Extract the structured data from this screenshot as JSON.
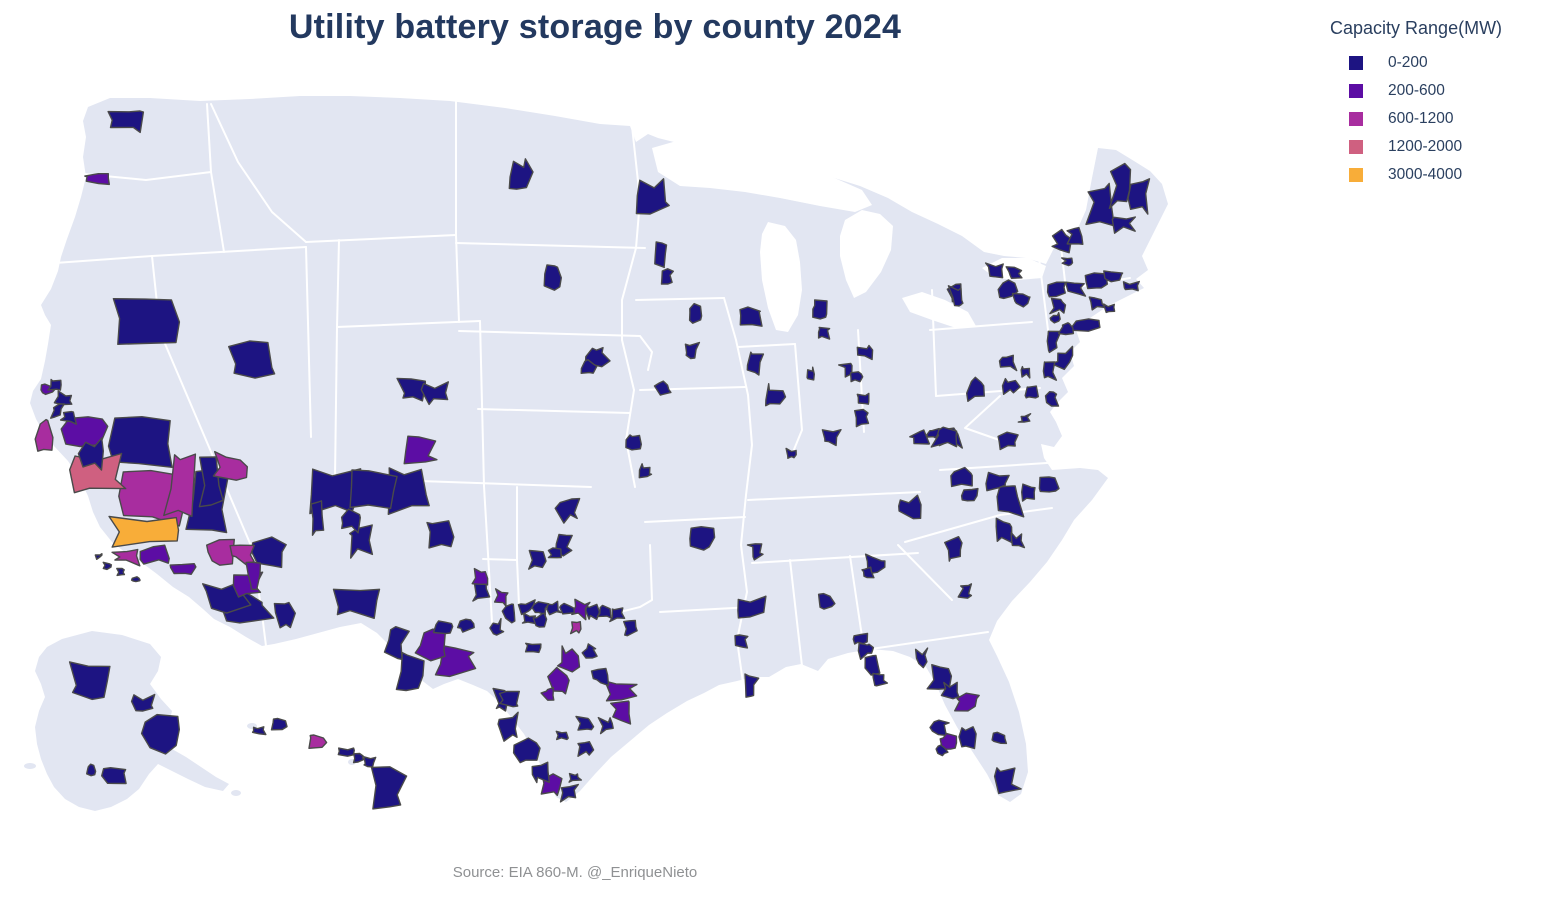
{
  "title": {
    "text": "Utility battery storage by county 2024"
  },
  "legend": {
    "title": "Capacity Range(MW)",
    "items": [
      {
        "label": "0-200",
        "color": "#1d1482"
      },
      {
        "label": "200-600",
        "color": "#5c0da4"
      },
      {
        "label": "600-1200",
        "color": "#a82d9f"
      },
      {
        "label": "1200-2000",
        "color": "#cf6080"
      },
      {
        "label": "3000-4000",
        "color": "#f8ad39"
      }
    ]
  },
  "source": {
    "text": "Source: EIA 860-M. @_EnriqueNieto"
  },
  "map": {
    "land_color": "#e2e6f2",
    "water_color": "#ffffff",
    "county_border_color": "#4a4a4a",
    "state_border_color": "#ffffff"
  },
  "chart_data": {
    "type": "choropleth",
    "title": "Utility battery storage by county 2024",
    "legend_title": "Capacity Range(MW)",
    "classes": [
      {
        "label": "0-200",
        "color": "#1d1482"
      },
      {
        "label": "200-600",
        "color": "#5c0da4"
      },
      {
        "label": "600-1200",
        "color": "#a82d9f"
      },
      {
        "label": "1200-2000",
        "color": "#cf6080"
      },
      {
        "label": "3000-4000",
        "color": "#f8ad39"
      }
    ],
    "source": "Source: EIA 860-M. @_EnriqueNieto",
    "counties": [
      [
        128,
        117,
        34,
        20,
        0
      ],
      [
        98,
        179,
        24,
        9,
        1
      ],
      [
        145,
        320,
        58,
        48,
        0
      ],
      [
        250,
        362,
        38,
        34,
        0
      ],
      [
        412,
        388,
        26,
        20,
        0
      ],
      [
        436,
        392,
        22,
        16,
        0
      ],
      [
        421,
        451,
        23,
        26,
        1
      ],
      [
        335,
        490,
        42,
        36,
        0
      ],
      [
        372,
        491,
        38,
        34,
        0
      ],
      [
        408,
        491,
        36,
        36,
        0
      ],
      [
        352,
        521,
        20,
        16,
        0
      ],
      [
        362,
        541,
        24,
        24,
        0
      ],
      [
        438,
        534,
        22,
        30,
        0
      ],
      [
        316,
        518,
        10,
        30,
        0
      ],
      [
        355,
        602,
        44,
        28,
        0
      ],
      [
        568,
        511,
        17,
        17,
        0
      ],
      [
        564,
        544,
        11,
        18,
        0
      ],
      [
        521,
        174,
        17,
        22,
        0
      ],
      [
        553,
        277,
        14,
        20,
        0
      ],
      [
        652,
        197,
        28,
        25,
        0
      ],
      [
        661,
        255,
        12,
        20,
        0
      ],
      [
        667,
        275,
        12,
        14,
        0
      ],
      [
        694,
        314,
        11,
        15,
        0
      ],
      [
        748,
        315,
        20,
        15,
        0
      ],
      [
        690,
        350,
        13,
        14,
        0
      ],
      [
        664,
        388,
        13,
        11,
        0
      ],
      [
        598,
        357,
        17,
        17,
        0
      ],
      [
        589,
        367,
        12,
        10,
        0
      ],
      [
        634,
        443,
        13,
        13,
        0
      ],
      [
        645,
        471,
        10,
        11,
        0
      ],
      [
        755,
        364,
        15,
        17,
        0
      ],
      [
        773,
        396,
        16,
        16,
        0
      ],
      [
        818,
        311,
        13,
        17,
        0
      ],
      [
        822,
        332,
        10,
        10,
        0
      ],
      [
        810,
        374,
        10,
        11,
        0
      ],
      [
        848,
        370,
        12,
        12,
        0
      ],
      [
        865,
        352,
        10,
        10,
        0
      ],
      [
        857,
        377,
        9,
        8,
        0
      ],
      [
        864,
        400,
        9,
        10,
        0
      ],
      [
        862,
        419,
        10,
        14,
        0
      ],
      [
        832,
        438,
        14,
        12,
        0
      ],
      [
        791,
        454,
        7,
        8,
        0
      ],
      [
        920,
        440,
        15,
        14,
        0
      ],
      [
        947,
        436,
        21,
        18,
        0
      ],
      [
        956,
        296,
        13,
        18,
        0
      ],
      [
        756,
        550,
        13,
        13,
        0
      ],
      [
        910,
        507,
        15,
        16,
        0
      ],
      [
        703,
        537,
        19,
        18,
        0
      ],
      [
        752,
        607,
        24,
        14,
        0
      ],
      [
        741,
        641,
        10,
        9,
        0
      ],
      [
        751,
        685,
        10,
        19,
        0
      ],
      [
        826,
        602,
        13,
        11,
        0
      ],
      [
        875,
        564,
        17,
        13,
        0
      ],
      [
        867,
        572,
        9,
        9,
        0
      ],
      [
        954,
        548,
        17,
        18,
        0
      ],
      [
        966,
        591,
        10,
        13,
        0
      ],
      [
        962,
        477,
        15,
        13,
        0
      ],
      [
        970,
        495,
        12,
        11,
        0
      ],
      [
        997,
        480,
        17,
        15,
        0
      ],
      [
        1010,
        500,
        21,
        24,
        0
      ],
      [
        1030,
        492,
        15,
        13,
        0
      ],
      [
        1048,
        486,
        17,
        13,
        0
      ],
      [
        1003,
        530,
        15,
        17,
        0
      ],
      [
        1016,
        541,
        11,
        11,
        0
      ],
      [
        1007,
        440,
        20,
        14,
        0
      ],
      [
        1025,
        419,
        9,
        8,
        0
      ],
      [
        944,
        437,
        19,
        15,
        0
      ],
      [
        933,
        434,
        8,
        8,
        0
      ],
      [
        977,
        390,
        15,
        18,
        0
      ],
      [
        1008,
        363,
        14,
        11,
        0
      ],
      [
        1010,
        386,
        13,
        13,
        0
      ],
      [
        1031,
        394,
        11,
        11,
        0
      ],
      [
        1025,
        372,
        8,
        8,
        0
      ],
      [
        1048,
        372,
        11,
        15,
        0
      ],
      [
        1052,
        340,
        13,
        18,
        0
      ],
      [
        1062,
        358,
        14,
        16,
        0
      ],
      [
        1066,
        328,
        11,
        9,
        0
      ],
      [
        1056,
        318,
        8,
        7,
        0
      ],
      [
        1087,
        325,
        26,
        9,
        0
      ],
      [
        1052,
        398,
        10,
        13,
        0
      ],
      [
        1007,
        290,
        15,
        13,
        0
      ],
      [
        1022,
        300,
        13,
        11,
        0
      ],
      [
        995,
        270,
        13,
        11,
        0
      ],
      [
        1014,
        273,
        11,
        9,
        0
      ],
      [
        958,
        297,
        13,
        16,
        0
      ],
      [
        1062,
        241,
        13,
        17,
        0
      ],
      [
        1075,
        236,
        11,
        15,
        0
      ],
      [
        1068,
        261,
        9,
        9,
        0
      ],
      [
        1058,
        290,
        15,
        13,
        0
      ],
      [
        1076,
        288,
        15,
        13,
        0
      ],
      [
        1096,
        282,
        17,
        13,
        0
      ],
      [
        1113,
        277,
        15,
        11,
        0
      ],
      [
        1131,
        286,
        13,
        7,
        0
      ],
      [
        1097,
        303,
        13,
        9,
        0
      ],
      [
        1110,
        309,
        11,
        7,
        0
      ],
      [
        1058,
        306,
        11,
        10,
        0
      ],
      [
        1100,
        206,
        20,
        38,
        0
      ],
      [
        1121,
        186,
        18,
        36,
        0
      ],
      [
        1140,
        196,
        16,
        28,
        0
      ],
      [
        1124,
        223,
        18,
        14,
        0
      ],
      [
        860,
        640,
        11,
        9,
        0
      ],
      [
        866,
        650,
        13,
        13,
        0
      ],
      [
        872,
        665,
        13,
        13,
        0
      ],
      [
        879,
        679,
        12,
        9,
        0
      ],
      [
        922,
        658,
        13,
        13,
        0
      ],
      [
        940,
        677,
        17,
        17,
        0
      ],
      [
        950,
        691,
        13,
        11,
        0
      ],
      [
        967,
        702,
        21,
        13,
        1
      ],
      [
        940,
        726,
        13,
        13,
        0
      ],
      [
        948,
        742,
        11,
        11,
        1
      ],
      [
        942,
        750,
        9,
        9,
        0
      ],
      [
        968,
        736,
        15,
        17,
        0
      ],
      [
        999,
        738,
        13,
        9,
        0
      ],
      [
        1005,
        780,
        21,
        21,
        0
      ],
      [
        47,
        390,
        13,
        8,
        1
      ],
      [
        55,
        385,
        10,
        8,
        0
      ],
      [
        63,
        399,
        13,
        11,
        0
      ],
      [
        57,
        411,
        10,
        12,
        0
      ],
      [
        69,
        416,
        15,
        12,
        0
      ],
      [
        44,
        436,
        12,
        28,
        2
      ],
      [
        85,
        432,
        40,
        32,
        1
      ],
      [
        92,
        453,
        22,
        24,
        0
      ],
      [
        140,
        442,
        60,
        48,
        0
      ],
      [
        95,
        474,
        50,
        34,
        3
      ],
      [
        150,
        497,
        64,
        46,
        2
      ],
      [
        180,
        486,
        22,
        56,
        2
      ],
      [
        206,
        505,
        32,
        58,
        0
      ],
      [
        148,
        534,
        66,
        24,
        4
      ],
      [
        128,
        556,
        24,
        15,
        2
      ],
      [
        155,
        556,
        22,
        15,
        1
      ],
      [
        184,
        570,
        21,
        14,
        1
      ],
      [
        222,
        552,
        23,
        17,
        2
      ],
      [
        243,
        553,
        19,
        16,
        2
      ],
      [
        226,
        596,
        38,
        24,
        0
      ],
      [
        253,
        575,
        10,
        24,
        1
      ],
      [
        232,
        465,
        27,
        22,
        2
      ],
      [
        211,
        481,
        17,
        42,
        0
      ],
      [
        108,
        566,
        8,
        5,
        0
      ],
      [
        121,
        572,
        7,
        4,
        0
      ],
      [
        136,
        579,
        6,
        4,
        0
      ],
      [
        99,
        556,
        5,
        4,
        0
      ],
      [
        269,
        552,
        28,
        24,
        0
      ],
      [
        247,
        583,
        23,
        19,
        1
      ],
      [
        245,
        610,
        46,
        24,
        0
      ],
      [
        284,
        614,
        17,
        20,
        0
      ],
      [
        481,
        577,
        12,
        15,
        1
      ],
      [
        481,
        592,
        12,
        13,
        0
      ],
      [
        502,
        597,
        12,
        12,
        1
      ],
      [
        536,
        560,
        13,
        13,
        0
      ],
      [
        554,
        553,
        11,
        11,
        0
      ],
      [
        527,
        607,
        12,
        11,
        0
      ],
      [
        540,
        608,
        12,
        11,
        0
      ],
      [
        554,
        608,
        12,
        10,
        0
      ],
      [
        566,
        610,
        11,
        10,
        0
      ],
      [
        592,
        612,
        12,
        11,
        0
      ],
      [
        605,
        613,
        11,
        10,
        0
      ],
      [
        617,
        615,
        11,
        10,
        0
      ],
      [
        581,
        609,
        15,
        15,
        1
      ],
      [
        575,
        628,
        8,
        9,
        2
      ],
      [
        528,
        620,
        11,
        9,
        0
      ],
      [
        541,
        620,
        11,
        9,
        0
      ],
      [
        510,
        612,
        11,
        16,
        0
      ],
      [
        497,
        627,
        11,
        11,
        0
      ],
      [
        465,
        625,
        13,
        10,
        0
      ],
      [
        444,
        626,
        15,
        11,
        0
      ],
      [
        432,
        645,
        24,
        24,
        1
      ],
      [
        455,
        660,
        32,
        26,
        1
      ],
      [
        396,
        644,
        19,
        24,
        0
      ],
      [
        408,
        672,
        21,
        32,
        0
      ],
      [
        567,
        660,
        19,
        20,
        1
      ],
      [
        561,
        681,
        17,
        18,
        1
      ],
      [
        549,
        694,
        11,
        11,
        1
      ],
      [
        590,
        652,
        12,
        11,
        0
      ],
      [
        600,
        676,
        11,
        13,
        0
      ],
      [
        534,
        647,
        12,
        9,
        0
      ],
      [
        510,
        700,
        14,
        14,
        0
      ],
      [
        621,
        691,
        23,
        19,
        1
      ],
      [
        624,
        713,
        19,
        17,
        1
      ],
      [
        585,
        724,
        13,
        12,
        0
      ],
      [
        606,
        725,
        11,
        11,
        0
      ],
      [
        502,
        700,
        13,
        17,
        0
      ],
      [
        510,
        726,
        16,
        22,
        0
      ],
      [
        526,
        752,
        18,
        22,
        0
      ],
      [
        540,
        772,
        12,
        15,
        0
      ],
      [
        552,
        786,
        14,
        17,
        1
      ],
      [
        569,
        793,
        12,
        12,
        0
      ],
      [
        575,
        778,
        9,
        9,
        0
      ],
      [
        585,
        749,
        12,
        10,
        0
      ],
      [
        562,
        736,
        10,
        8,
        0
      ],
      [
        630,
        628,
        11,
        10,
        0
      ],
      [
        90,
        680,
        38,
        28,
        0
      ],
      [
        144,
        703,
        19,
        11,
        0
      ],
      [
        160,
        733,
        28,
        33,
        0
      ],
      [
        113,
        773,
        18,
        15,
        0
      ],
      [
        92,
        770,
        7,
        9,
        0
      ],
      [
        280,
        723,
        13,
        10,
        0
      ],
      [
        259,
        730,
        11,
        6,
        0
      ],
      [
        317,
        741,
        14,
        11,
        2
      ],
      [
        346,
        752,
        15,
        7,
        0
      ],
      [
        358,
        758,
        9,
        7,
        0
      ],
      [
        369,
        762,
        11,
        8,
        0
      ],
      [
        386,
        789,
        32,
        34,
        0
      ]
    ]
  }
}
